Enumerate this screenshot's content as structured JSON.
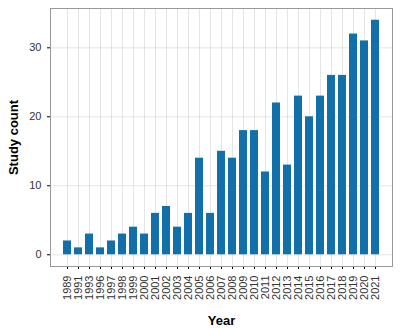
{
  "chart_data": {
    "type": "bar",
    "x_label": "Year",
    "y_label": "Study count",
    "categories": [
      "1989",
      "1991",
      "1993",
      "1996",
      "1997",
      "1998",
      "1999",
      "2000",
      "2001",
      "2002",
      "2003",
      "2004",
      "2005",
      "2006",
      "2007",
      "2008",
      "2009",
      "2010",
      "2011",
      "2012",
      "2013",
      "2014",
      "2015",
      "2016",
      "2017",
      "2018",
      "2019",
      "2020",
      "2021"
    ],
    "values": [
      2,
      1,
      3,
      1,
      2,
      3,
      4,
      3,
      6,
      7,
      4,
      6,
      14,
      6,
      15,
      14,
      18,
      18,
      12,
      22,
      13,
      23,
      20,
      23,
      26,
      26,
      32,
      31,
      34
    ],
    "color": "#1170aa",
    "ylim": [
      -1.7,
      35.7
    ],
    "yticks": [
      0,
      10,
      20,
      30
    ],
    "grid": true
  }
}
